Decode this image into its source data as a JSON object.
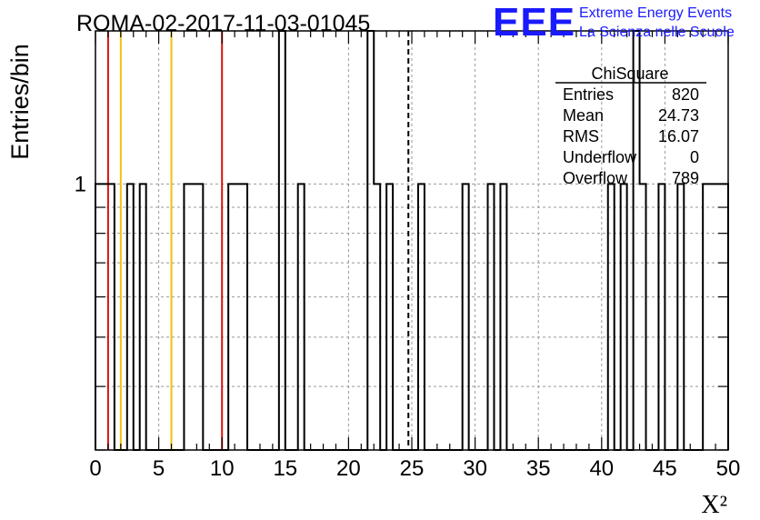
{
  "chart_data": {
    "type": "histogram",
    "title": "ROMA-02-2017-11-03-01045",
    "xlabel": "X²",
    "ylabel": "Entries/bin",
    "xlim": [
      0,
      50
    ],
    "ylim": [
      0.3,
      2.0
    ],
    "yscale": "log",
    "grid": true,
    "bin_width": 0.5,
    "x_ticks": [
      0,
      5,
      10,
      15,
      20,
      25,
      30,
      35,
      40,
      45,
      50
    ],
    "y_tick_labels": [
      {
        "value": 1,
        "label": "1"
      }
    ],
    "bins_nonzero": [
      {
        "x": 0.0,
        "count": 1
      },
      {
        "x": 0.5,
        "count": 1
      },
      {
        "x": 1.0,
        "count": 1
      },
      {
        "x": 2.5,
        "count": 1
      },
      {
        "x": 3.5,
        "count": 1
      },
      {
        "x": 7.0,
        "count": 1
      },
      {
        "x": 7.5,
        "count": 1
      },
      {
        "x": 8.0,
        "count": 1
      },
      {
        "x": 10.5,
        "count": 1
      },
      {
        "x": 11.0,
        "count": 1
      },
      {
        "x": 11.5,
        "count": 1
      },
      {
        "x": 14.5,
        "count": 2
      },
      {
        "x": 16.0,
        "count": 1
      },
      {
        "x": 21.5,
        "count": 2
      },
      {
        "x": 22.0,
        "count": 1
      },
      {
        "x": 23.0,
        "count": 1
      },
      {
        "x": 25.5,
        "count": 1
      },
      {
        "x": 29.0,
        "count": 1
      },
      {
        "x": 31.0,
        "count": 1
      },
      {
        "x": 32.0,
        "count": 1
      },
      {
        "x": 40.5,
        "count": 1
      },
      {
        "x": 41.5,
        "count": 1
      },
      {
        "x": 42.5,
        "count": 2
      },
      {
        "x": 43.0,
        "count": 1
      },
      {
        "x": 44.5,
        "count": 1
      },
      {
        "x": 46.0,
        "count": 1
      },
      {
        "x": 48.0,
        "count": 1
      },
      {
        "x": 48.5,
        "count": 1
      },
      {
        "x": 49.0,
        "count": 1
      },
      {
        "x": 49.5,
        "count": 1
      }
    ],
    "vertical_lines": [
      {
        "x": 1.0,
        "color": "#dd1111",
        "style": "solid"
      },
      {
        "x": 2.0,
        "color": "#f2c010",
        "style": "solid"
      },
      {
        "x": 6.0,
        "color": "#f2c010",
        "style": "solid"
      },
      {
        "x": 10.0,
        "color": "#dd1111",
        "style": "solid"
      },
      {
        "x": 24.73,
        "color": "#000000",
        "style": "dashed"
      }
    ],
    "stats": {
      "title": "ChiSquare",
      "rows": [
        {
          "label": "Entries",
          "value": "820"
        },
        {
          "label": "Mean",
          "value": "24.73"
        },
        {
          "label": "RMS",
          "value": "16.07"
        },
        {
          "label": "Underflow",
          "value": "0"
        },
        {
          "label": "Overflow",
          "value": "789"
        }
      ]
    }
  },
  "logo": {
    "mark": "EEE",
    "line1": "Extreme Energy Events",
    "line2": "La Scienza nelle Scuole",
    "color": "#1a1aff"
  }
}
